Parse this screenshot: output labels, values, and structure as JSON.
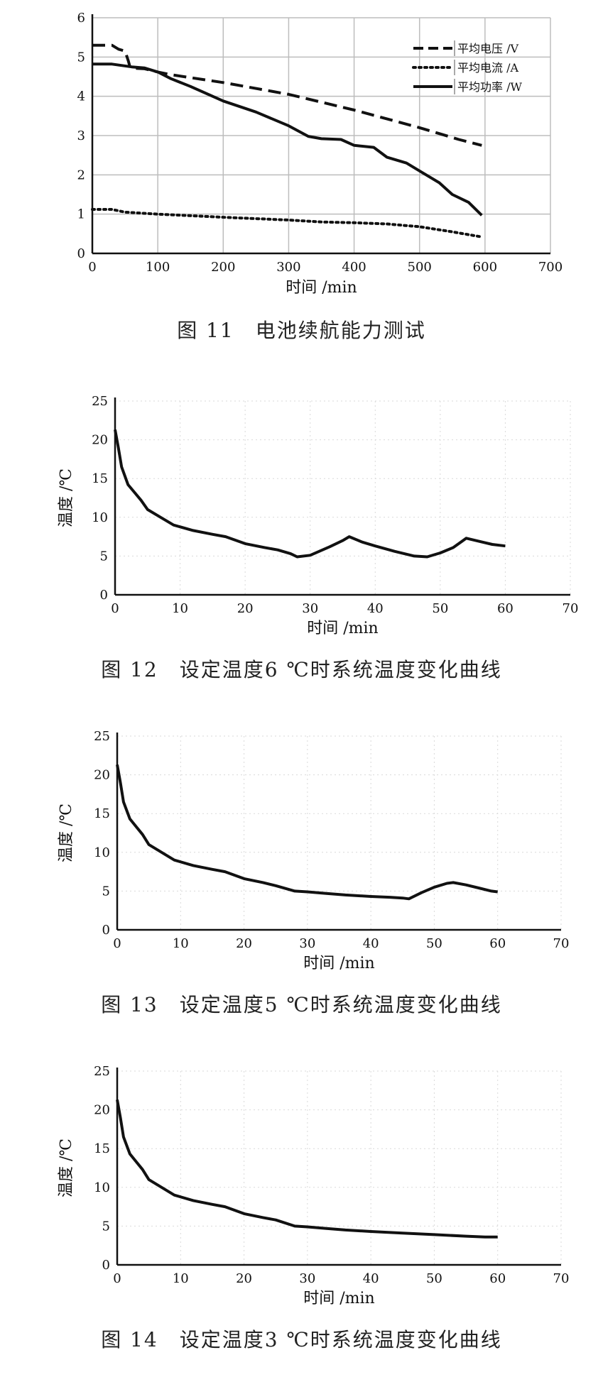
{
  "figures": [
    {
      "caption_num": "图 11",
      "caption_text": "电池续航能力测试"
    },
    {
      "caption_num": "图 12",
      "caption_text": "设定温度6 ℃时系统温度变化曲线"
    },
    {
      "caption_num": "图 13",
      "caption_text": "设定温度5 ℃时系统温度变化曲线"
    },
    {
      "caption_num": "图 14",
      "caption_text": "设定温度3 ℃时系统温度变化曲线"
    }
  ],
  "chart_data": [
    {
      "type": "line",
      "xlabel": "时间 /min",
      "ylabel": "",
      "xlim": [
        0,
        700
      ],
      "ylim": [
        0,
        6
      ],
      "xticks": [
        0,
        100,
        200,
        300,
        400,
        500,
        600,
        700
      ],
      "yticks": [
        0,
        1,
        2,
        3,
        4,
        5,
        6
      ],
      "grid": true,
      "legend_position": "top-right",
      "series": [
        {
          "name": "平均电压 /V",
          "style": "dashed",
          "points": [
            [
              0,
              5.3
            ],
            [
              30,
              5.3
            ],
            [
              40,
              5.2
            ],
            [
              50,
              5.15
            ],
            [
              55,
              4.9
            ],
            [
              58,
              4.72
            ],
            [
              80,
              4.7
            ],
            [
              100,
              4.62
            ],
            [
              120,
              4.55
            ],
            [
              200,
              4.35
            ],
            [
              300,
              4.05
            ],
            [
              400,
              3.65
            ],
            [
              500,
              3.2
            ],
            [
              530,
              3.05
            ],
            [
              560,
              2.9
            ],
            [
              595,
              2.75
            ]
          ]
        },
        {
          "name": "平均电流 /A",
          "style": "dotted",
          "points": [
            [
              0,
              1.12
            ],
            [
              30,
              1.12
            ],
            [
              50,
              1.05
            ],
            [
              100,
              1.0
            ],
            [
              200,
              0.92
            ],
            [
              300,
              0.85
            ],
            [
              350,
              0.8
            ],
            [
              400,
              0.78
            ],
            [
              450,
              0.75
            ],
            [
              500,
              0.68
            ],
            [
              550,
              0.55
            ],
            [
              595,
              0.42
            ]
          ]
        },
        {
          "name": "平均功率 /W",
          "style": "solid",
          "points": [
            [
              0,
              4.82
            ],
            [
              30,
              4.82
            ],
            [
              60,
              4.75
            ],
            [
              80,
              4.72
            ],
            [
              100,
              4.62
            ],
            [
              120,
              4.45
            ],
            [
              150,
              4.25
            ],
            [
              200,
              3.88
            ],
            [
              250,
              3.6
            ],
            [
              300,
              3.25
            ],
            [
              330,
              2.98
            ],
            [
              350,
              2.92
            ],
            [
              380,
              2.9
            ],
            [
              400,
              2.75
            ],
            [
              430,
              2.7
            ],
            [
              450,
              2.45
            ],
            [
              480,
              2.3
            ],
            [
              500,
              2.1
            ],
            [
              530,
              1.8
            ],
            [
              550,
              1.5
            ],
            [
              575,
              1.3
            ],
            [
              595,
              0.97
            ]
          ]
        }
      ]
    },
    {
      "type": "line",
      "xlabel": "时间 /min",
      "ylabel": "温度 /℃",
      "xlim": [
        0,
        70
      ],
      "ylim": [
        0,
        25
      ],
      "xticks": [
        0,
        10,
        20,
        30,
        40,
        50,
        60,
        70
      ],
      "yticks": [
        0,
        5,
        10,
        15,
        20,
        25
      ],
      "grid": true,
      "series": [
        {
          "style": "solid",
          "points": [
            [
              0,
              21.3
            ],
            [
              0.5,
              19
            ],
            [
              1,
              16.5
            ],
            [
              2,
              14.2
            ],
            [
              3,
              13.2
            ],
            [
              4,
              12.2
            ],
            [
              5,
              11.0
            ],
            [
              7,
              10.0
            ],
            [
              9,
              9.0
            ],
            [
              12,
              8.3
            ],
            [
              15,
              7.8
            ],
            [
              17,
              7.5
            ],
            [
              20,
              6.6
            ],
            [
              23,
              6.1
            ],
            [
              25,
              5.8
            ],
            [
              27,
              5.3
            ],
            [
              28,
              4.9
            ],
            [
              30,
              5.1
            ],
            [
              33,
              6.2
            ],
            [
              35,
              7.0
            ],
            [
              36,
              7.5
            ],
            [
              38,
              6.8
            ],
            [
              40,
              6.3
            ],
            [
              43,
              5.6
            ],
            [
              46,
              5.0
            ],
            [
              48,
              4.9
            ],
            [
              50,
              5.4
            ],
            [
              52,
              6.1
            ],
            [
              54,
              7.3
            ],
            [
              56,
              6.9
            ],
            [
              58,
              6.5
            ],
            [
              60,
              6.3
            ]
          ]
        }
      ]
    },
    {
      "type": "line",
      "xlabel": "时间 /min",
      "ylabel": "温度 /℃",
      "xlim": [
        0,
        70
      ],
      "ylim": [
        0,
        25
      ],
      "xticks": [
        0,
        10,
        20,
        30,
        40,
        50,
        60,
        70
      ],
      "yticks": [
        0,
        5,
        10,
        15,
        20,
        25
      ],
      "grid": true,
      "series": [
        {
          "style": "solid",
          "points": [
            [
              0,
              21.3
            ],
            [
              0.5,
              19
            ],
            [
              1,
              16.5
            ],
            [
              2,
              14.3
            ],
            [
              3,
              13.3
            ],
            [
              4,
              12.3
            ],
            [
              5,
              11.0
            ],
            [
              7,
              10.0
            ],
            [
              9,
              9.0
            ],
            [
              12,
              8.3
            ],
            [
              15,
              7.8
            ],
            [
              17,
              7.5
            ],
            [
              20,
              6.6
            ],
            [
              23,
              6.1
            ],
            [
              25,
              5.7
            ],
            [
              28,
              5.0
            ],
            [
              30,
              4.9
            ],
            [
              33,
              4.7
            ],
            [
              36,
              4.5
            ],
            [
              40,
              4.3
            ],
            [
              43,
              4.2
            ],
            [
              45,
              4.1
            ],
            [
              46,
              4.0
            ],
            [
              48,
              4.8
            ],
            [
              50,
              5.5
            ],
            [
              52,
              6.0
            ],
            [
              53,
              6.1
            ],
            [
              55,
              5.8
            ],
            [
              57,
              5.4
            ],
            [
              59,
              5.0
            ],
            [
              60,
              4.9
            ]
          ]
        }
      ]
    },
    {
      "type": "line",
      "xlabel": "时间 /min",
      "ylabel": "温度 /℃",
      "xlim": [
        0,
        70
      ],
      "ylim": [
        0,
        25
      ],
      "xticks": [
        0,
        10,
        20,
        30,
        40,
        50,
        60,
        70
      ],
      "yticks": [
        0,
        5,
        10,
        15,
        20,
        25
      ],
      "grid": true,
      "series": [
        {
          "style": "solid",
          "points": [
            [
              0,
              21.3
            ],
            [
              0.5,
              19
            ],
            [
              1,
              16.5
            ],
            [
              2,
              14.3
            ],
            [
              3,
              13.3
            ],
            [
              4,
              12.3
            ],
            [
              5,
              11.0
            ],
            [
              7,
              10.0
            ],
            [
              9,
              9.0
            ],
            [
              12,
              8.3
            ],
            [
              15,
              7.8
            ],
            [
              17,
              7.5
            ],
            [
              20,
              6.6
            ],
            [
              23,
              6.1
            ],
            [
              25,
              5.8
            ],
            [
              28,
              5.0
            ],
            [
              30,
              4.9
            ],
            [
              33,
              4.7
            ],
            [
              36,
              4.5
            ],
            [
              40,
              4.3
            ],
            [
              45,
              4.1
            ],
            [
              50,
              3.9
            ],
            [
              55,
              3.7
            ],
            [
              58,
              3.6
            ],
            [
              60,
              3.6
            ]
          ]
        }
      ]
    }
  ]
}
